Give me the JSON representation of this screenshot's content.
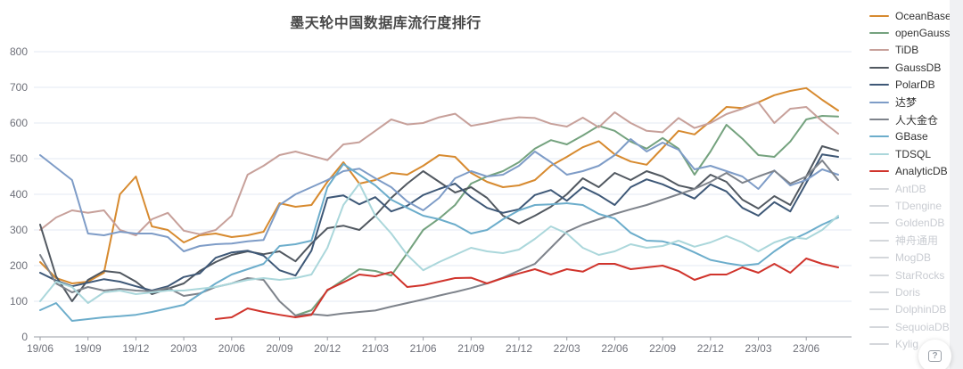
{
  "chart_data": {
    "type": "line",
    "title": "墨天轮中国数据库流行度排行",
    "xlabel": "",
    "ylabel": "",
    "ylim": [
      0,
      800
    ],
    "y_ticks": [
      0,
      100,
      200,
      300,
      400,
      500,
      600,
      700,
      800
    ],
    "grid": true,
    "legend_position": "right",
    "x_months_count": 51,
    "x_tick_every": 3,
    "x_tick_labels": [
      "19/06",
      "19/09",
      "19/12",
      "20/03",
      "20/06",
      "20/09",
      "20/12",
      "21/03",
      "21/06",
      "21/09",
      "21/12",
      "22/03",
      "22/06",
      "22/09",
      "22/12",
      "23/03",
      "23/06"
    ],
    "series": [
      {
        "name": "OceanBase",
        "color": "#d78a2f",
        "enabled": true,
        "values": [
          210,
          165,
          150,
          155,
          180,
          400,
          450,
          310,
          300,
          265,
          285,
          290,
          280,
          285,
          295,
          375,
          365,
          370,
          435,
          490,
          430,
          440,
          460,
          455,
          480,
          510,
          505,
          460,
          435,
          420,
          425,
          440,
          480,
          505,
          532,
          549,
          512,
          492,
          483,
          530,
          578,
          568,
          605,
          645,
          642,
          658,
          678,
          690,
          698,
          665,
          635
        ]
      },
      {
        "name": "openGauss",
        "color": "#74a27e",
        "enabled": true,
        "values": [
          null,
          null,
          null,
          null,
          null,
          null,
          null,
          null,
          null,
          null,
          null,
          null,
          null,
          null,
          null,
          null,
          60,
          75,
          130,
          160,
          190,
          185,
          172,
          235,
          300,
          332,
          370,
          430,
          450,
          465,
          490,
          528,
          552,
          540,
          565,
          592,
          578,
          548,
          528,
          558,
          528,
          455,
          520,
          595,
          556,
          510,
          505,
          548,
          610,
          620,
          618
        ]
      },
      {
        "name": "TiDB",
        "color": "#c7a09a",
        "enabled": true,
        "values": [
          300,
          335,
          355,
          348,
          355,
          300,
          285,
          330,
          348,
          298,
          288,
          300,
          340,
          455,
          480,
          510,
          520,
          508,
          496,
          540,
          546,
          578,
          610,
          596,
          600,
          616,
          626,
          592,
          600,
          610,
          616,
          614,
          598,
          590,
          615,
          588,
          630,
          600,
          578,
          574,
          614,
          586,
          600,
          625,
          640,
          658,
          600,
          640,
          645,
          605,
          570
        ]
      },
      {
        "name": "GaussDB",
        "color": "#515860",
        "enabled": true,
        "values": [
          315,
          170,
          100,
          160,
          185,
          180,
          155,
          120,
          135,
          150,
          185,
          210,
          230,
          240,
          232,
          240,
          212,
          262,
          305,
          312,
          300,
          340,
          390,
          430,
          465,
          435,
          405,
          420,
          390,
          340,
          318,
          340,
          365,
          400,
          445,
          420,
          460,
          440,
          465,
          450,
          425,
          415,
          455,
          435,
          385,
          360,
          395,
          370,
          450,
          535,
          522
        ]
      },
      {
        "name": "PolarDB",
        "color": "#3e5877",
        "enabled": true,
        "values": [
          180,
          158,
          142,
          152,
          162,
          155,
          142,
          130,
          142,
          168,
          178,
          222,
          237,
          242,
          228,
          187,
          172,
          242,
          390,
          397,
          372,
          392,
          352,
          368,
          398,
          415,
          430,
          392,
          362,
          348,
          358,
          398,
          412,
          382,
          420,
          398,
          370,
          420,
          442,
          428,
          408,
          388,
          428,
          408,
          362,
          340,
          378,
          352,
          432,
          512,
          505
        ]
      },
      {
        "name": "达梦",
        "color": "#7e9cc7",
        "enabled": true,
        "values": [
          510,
          475,
          440,
          290,
          285,
          295,
          290,
          290,
          280,
          240,
          255,
          260,
          262,
          268,
          272,
          370,
          400,
          420,
          440,
          465,
          472,
          445,
          420,
          380,
          355,
          390,
          445,
          465,
          450,
          455,
          480,
          520,
          490,
          455,
          465,
          480,
          510,
          555,
          520,
          545,
          525,
          470,
          480,
          465,
          450,
          415,
          467,
          425,
          440,
          470,
          455
        ]
      },
      {
        "name": "人大金仓",
        "color": "#7e838b",
        "enabled": true,
        "values": [
          230,
          150,
          125,
          140,
          130,
          135,
          130,
          128,
          138,
          115,
          122,
          140,
          150,
          165,
          160,
          100,
          60,
          64,
          60,
          66,
          70,
          74,
          85,
          95,
          105,
          116,
          126,
          137,
          150,
          166,
          186,
          205,
          250,
          295,
          315,
          330,
          345,
          358,
          370,
          385,
          400,
          415,
          435,
          460,
          432,
          450,
          466,
          430,
          450,
          495,
          440
        ]
      },
      {
        "name": "GBase",
        "color": "#6cadcb",
        "enabled": true,
        "values": [
          75,
          95,
          45,
          50,
          55,
          58,
          62,
          70,
          80,
          90,
          120,
          150,
          175,
          190,
          205,
          255,
          260,
          270,
          420,
          485,
          455,
          425,
          385,
          362,
          340,
          330,
          315,
          290,
          300,
          330,
          355,
          370,
          372,
          375,
          370,
          345,
          332,
          292,
          270,
          268,
          257,
          237,
          216,
          207,
          200,
          205,
          240,
          270,
          291,
          315,
          335
        ]
      },
      {
        "name": "TDSQL",
        "color": "#abd7db",
        "enabled": true,
        "values": [
          100,
          155,
          140,
          95,
          125,
          130,
          120,
          125,
          130,
          130,
          135,
          140,
          150,
          160,
          165,
          160,
          165,
          175,
          250,
          370,
          430,
          340,
          290,
          230,
          187,
          210,
          230,
          250,
          240,
          235,
          245,
          275,
          310,
          290,
          250,
          230,
          240,
          260,
          250,
          255,
          270,
          253,
          265,
          283,
          265,
          240,
          265,
          280,
          275,
          300,
          340
        ]
      },
      {
        "name": "AnalyticDB",
        "color": "#d0342c",
        "enabled": true,
        "values": [
          null,
          null,
          null,
          null,
          null,
          null,
          null,
          null,
          null,
          null,
          null,
          50,
          55,
          80,
          70,
          62,
          55,
          62,
          132,
          153,
          175,
          170,
          182,
          140,
          145,
          155,
          165,
          166,
          150,
          165,
          178,
          190,
          175,
          190,
          183,
          205,
          205,
          190,
          195,
          200,
          185,
          160,
          175,
          175,
          195,
          180,
          205,
          180,
          220,
          205,
          195
        ]
      },
      {
        "name": "AntDB",
        "color": "#d4d7db",
        "enabled": false,
        "values": null
      },
      {
        "name": "TDengine",
        "color": "#d4d7db",
        "enabled": false,
        "values": null
      },
      {
        "name": "GoldenDB",
        "color": "#d4d7db",
        "enabled": false,
        "values": null
      },
      {
        "name": "神舟通用",
        "color": "#d4d7db",
        "enabled": false,
        "values": null
      },
      {
        "name": "MogDB",
        "color": "#d4d7db",
        "enabled": false,
        "values": null
      },
      {
        "name": "StarRocks",
        "color": "#d4d7db",
        "enabled": false,
        "values": null
      },
      {
        "name": "Doris",
        "color": "#d4d7db",
        "enabled": false,
        "values": null
      },
      {
        "name": "DolphinDB",
        "color": "#d4d7db",
        "enabled": false,
        "values": null
      },
      {
        "name": "SequoiaDB",
        "color": "#d4d7db",
        "enabled": false,
        "values": null
      },
      {
        "name": "Kylig",
        "color": "#d4d7db",
        "enabled": false,
        "values": null
      }
    ],
    "style": {
      "grid_color": "#e3e9f3",
      "axis_color": "#9a9da5",
      "tick_label_color": "#6e7079",
      "title_color": "#484848",
      "disabled_legend_text": "#c9ccd2",
      "line_width": 2
    }
  },
  "help_button": {
    "glyph": "?"
  }
}
